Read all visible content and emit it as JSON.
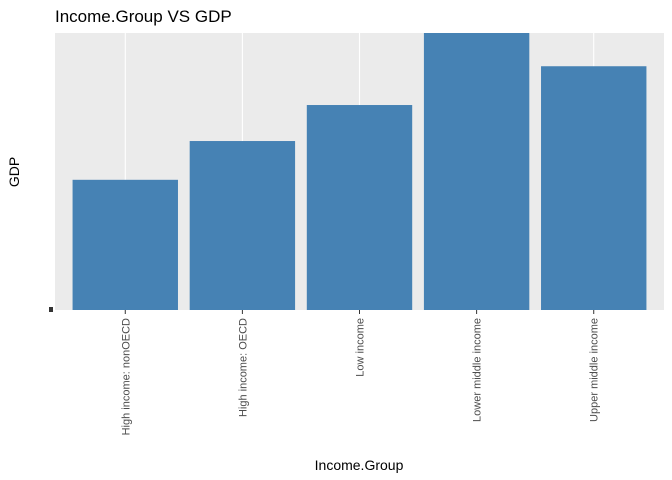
{
  "chart_data": {
    "type": "bar",
    "title": "Income.Group VS GDP",
    "xlabel": "Income.Group",
    "ylabel": "GDP",
    "categories": [
      "High income: nonOECD",
      "High income: OECD",
      "Low income",
      "Lower middle income",
      "Upper middle income"
    ],
    "values": [
      47,
      61,
      74,
      100,
      88
    ],
    "ylim": [
      0,
      100
    ],
    "bar_color": "#4682b4",
    "panel_color": "#ebebeb",
    "grid_color": "#ffffff",
    "grid": true,
    "legend": "none"
  }
}
